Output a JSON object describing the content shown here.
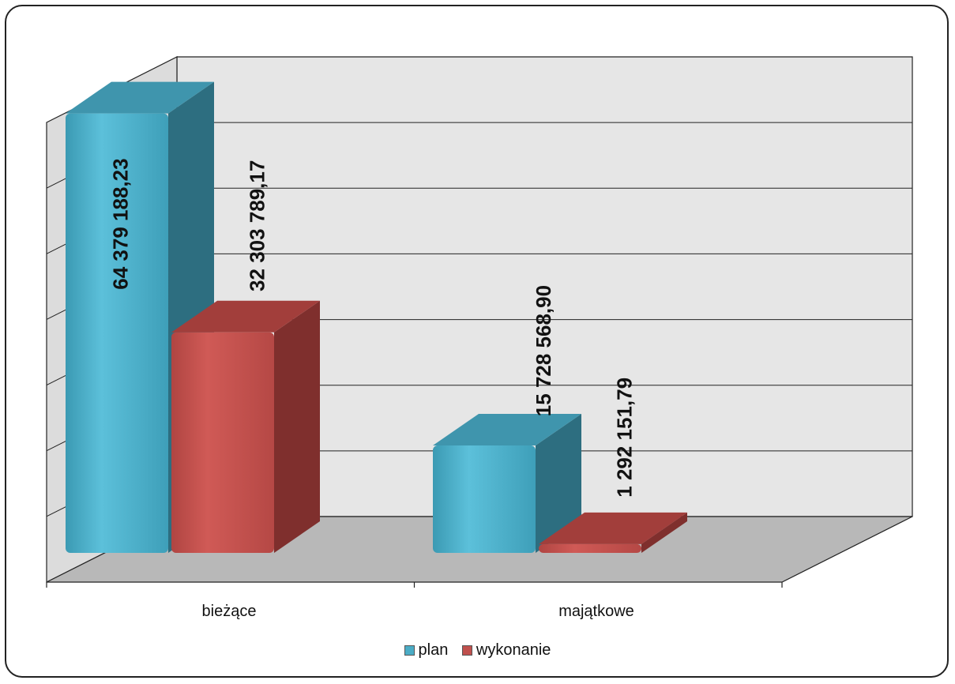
{
  "chart_data": {
    "type": "bar",
    "categories": [
      "bieżące",
      "majątkowe"
    ],
    "series": [
      {
        "name": "plan",
        "values": [
          64379188.23,
          15728568.9
        ],
        "labels": [
          "64 379 188,23",
          "15 728 568,90"
        ]
      },
      {
        "name": "wykonanie",
        "values": [
          32303789.17,
          1292151.79
        ],
        "labels": [
          "32 303 789,17",
          "1 292 151,79"
        ]
      }
    ],
    "ylim": [
      0,
      70000000
    ],
    "grid": true,
    "legend": "bottom",
    "three_d": true
  },
  "colors": {
    "plan": "#4bacc6",
    "plan_side": "#2d6e80",
    "plan_top": "#3f95ad",
    "wykonanie": "#c0504d",
    "wykonanie_side": "#7f2f2d",
    "wykonanie_top": "#a23e3b",
    "wall": "#e6e6e6",
    "floor": "#b8b8b8",
    "grid": "#222222"
  }
}
